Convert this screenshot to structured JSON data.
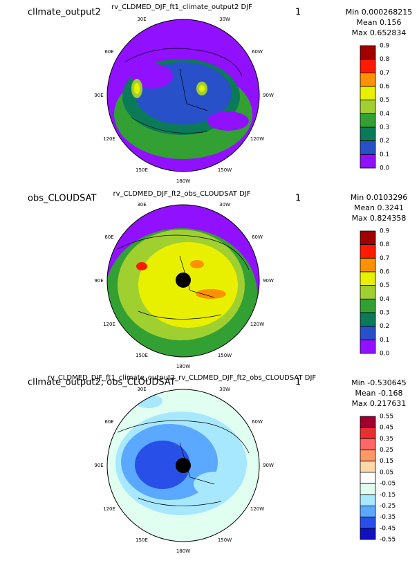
{
  "panels": [
    {
      "title": "cllmate_output2",
      "subtitle": "rv_CLDMED_DJF_ft1_climate_output2  DJF",
      "number": "1",
      "stats": [
        "Min 0.000268215",
        "Mean 0.156",
        "Max 0.652834"
      ],
      "levels": [
        "0.9",
        "0.8",
        "0.7",
        "0.6",
        "0.5",
        "0.4",
        "0.3",
        "0.2",
        "0.1",
        "0.0"
      ],
      "colors": [
        "#a00000",
        "#ff1a00",
        "#ff9000",
        "#e8f000",
        "#a0d030",
        "#33a033",
        "#0a7a58",
        "#2850c8",
        "#9010ff"
      ]
    },
    {
      "title": "obs_CLOUDSAT",
      "subtitle": "rv_CLDMED_DJF_ft2_obs_CLOUDSAT  DJF",
      "number": "1",
      "stats": [
        "Min 0.0103296",
        "Mean 0.3241",
        "Max 0.824358"
      ],
      "levels": [
        "0.9",
        "0.8",
        "0.7",
        "0.6",
        "0.5",
        "0.4",
        "0.3",
        "0.2",
        "0.1",
        "0.0"
      ],
      "colors": [
        "#a00000",
        "#ff1a00",
        "#ff9000",
        "#e8f000",
        "#a0d030",
        "#33a033",
        "#0a7a58",
        "#2850c8",
        "#9010ff"
      ]
    },
    {
      "title": "cllmate_output2; obs_CLOUDSAT",
      "subtitle": "rv_CLDMED_DJF_ft1_climate_output2_rv_CLDMED_DJF_ft2_obs_CLOUDSAT  DJF",
      "number": "1",
      "stats": [
        "Min -0.530645",
        "Mean -0.168",
        "Max 0.217631"
      ],
      "levels": [
        "0.55",
        "0.45",
        "0.35",
        "0.25",
        "0.15",
        "0.05",
        "-0.05",
        "-0.15",
        "-0.25",
        "-0.35",
        "-0.45",
        "-0.55"
      ],
      "colors": [
        "#a00030",
        "#e83030",
        "#ff6868",
        "#ff9868",
        "#ffd8a8",
        "#ffffff",
        "#e0fff0",
        "#a8e8ff",
        "#5aa8ff",
        "#2850e8",
        "#1010c0"
      ]
    }
  ],
  "lon_labels": [
    "30E",
    "30W",
    "60E",
    "60W",
    "90E",
    "90W",
    "120E",
    "120W",
    "150E",
    "150W",
    "180W"
  ]
}
